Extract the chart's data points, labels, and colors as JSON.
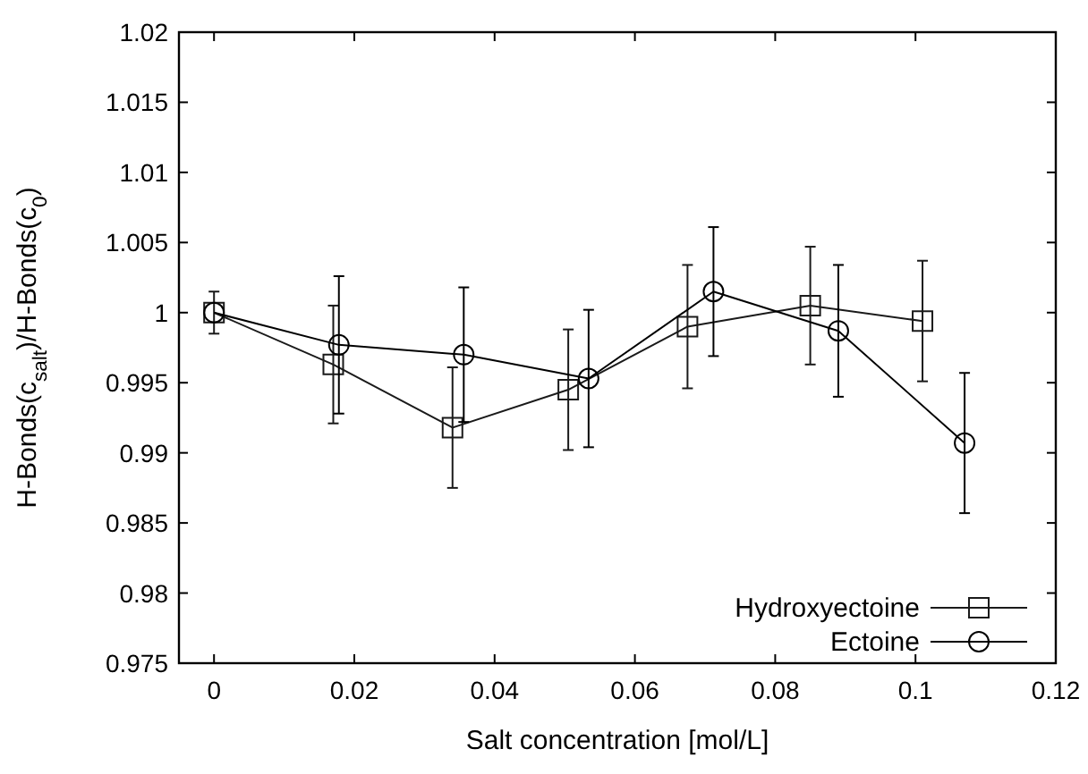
{
  "chart_data": {
    "type": "line",
    "xlabel": "Salt concentration [mol/L]",
    "ylabel": "H-Bonds(c$_{salt}$)/H-Bonds(c$_{0}$)",
    "xlim": [
      -0.005,
      0.12
    ],
    "xticks": [
      0,
      0.02,
      0.04,
      0.06,
      0.08,
      0.1,
      0.12
    ],
    "ylim": [
      0.975,
      1.02
    ],
    "yticks": [
      0.975,
      0.98,
      0.985,
      0.99,
      0.995,
      1,
      1.005,
      1.01,
      1.015,
      1.02
    ],
    "grid": false,
    "legend": "bottom right",
    "line_style": "solid",
    "series": [
      {
        "name": "Hydroxyectoine",
        "color": "#1a1a1a",
        "marker": "square",
        "x": [
          0,
          0.017,
          0.034,
          0.0505,
          0.0675,
          0.085,
          0.101
        ],
        "values": [
          1,
          0.9963,
          0.9918,
          0.9945,
          0.999,
          1.0005,
          0.9994
        ],
        "errors": [
          0.0015,
          0.0042,
          0.0043,
          0.0043,
          0.0044,
          0.0042,
          0.0043
        ]
      },
      {
        "name": "Ectoine",
        "color": "#000000",
        "marker": "circle",
        "x": [
          0,
          0.0178,
          0.0356,
          0.0534,
          0.0712,
          0.089,
          0.107
        ],
        "values": [
          1,
          0.9977,
          0.997,
          0.9953,
          1.0015,
          0.9987,
          0.9907
        ],
        "errors": [
          null,
          0.0049,
          0.0048,
          0.0049,
          0.0046,
          0.0047,
          0.005
        ]
      }
    ]
  }
}
